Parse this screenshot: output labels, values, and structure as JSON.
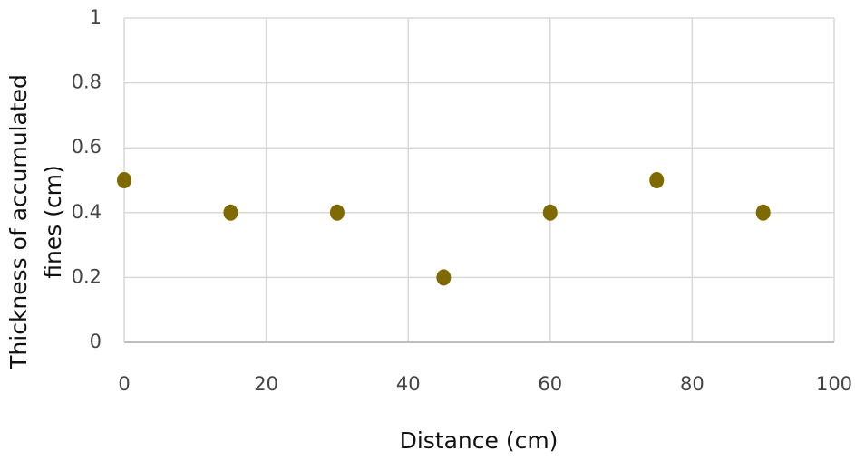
{
  "chart_data": {
    "type": "scatter",
    "xlabel": "Distance (cm)",
    "ylabel": [
      "Thickness of accumulated",
      "fines (cm)"
    ],
    "x": [
      0,
      15,
      30,
      45,
      60,
      75,
      90
    ],
    "values": [
      0.5,
      0.4,
      0.4,
      0.2,
      0.4,
      0.5,
      0.4
    ],
    "color": "#7f6a00",
    "xlim": [
      0,
      100
    ],
    "xticks": [
      0,
      20,
      40,
      60,
      80,
      100
    ],
    "ylim": [
      0,
      1
    ],
    "yticks": [
      0,
      0.2,
      0.4,
      0.6,
      0.8,
      1
    ],
    "grid": true
  }
}
